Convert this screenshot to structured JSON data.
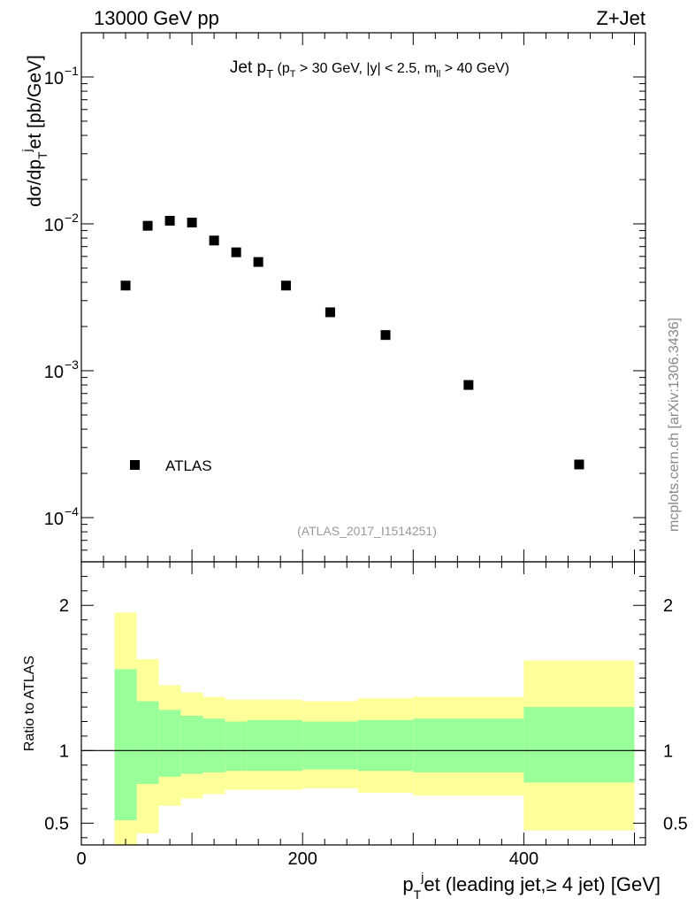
{
  "header": {
    "energy_label": "13000 GeV pp",
    "process_label": "Z+Jet"
  },
  "watermark": "mcplots.cern.ch [arXiv:1306.3436]",
  "analysis_id": "(ATLAS_2017_I1514251)",
  "colors": {
    "band_outer": "#ffff99",
    "band_inner": "#99ff99",
    "marker": "#000000"
  },
  "chart_data": [
    {
      "type": "scatter",
      "title": {
        "main": "Jet p",
        "main_sub": "T",
        "cut_pre": "(p",
        "cut_pre_sub": "T",
        "cut_mid": " > 30 GeV, |y| < 2.5, m",
        "cut_mid_sub": "ll",
        "cut_post": " > 40 GeV)"
      },
      "ylabel": {
        "a": "dσ/dp",
        "sub": "T",
        "sup": "j",
        "b": "et [pb/GeV]"
      },
      "yscale": "log",
      "ylim": [
        5e-05,
        0.2
      ],
      "xlim": [
        0,
        510
      ],
      "y_ticks": [
        {
          "value": 0.0001,
          "base": "10",
          "exp": "−4"
        },
        {
          "value": 0.001,
          "base": "10",
          "exp": "−3"
        },
        {
          "value": 0.01,
          "base": "10",
          "exp": "−2"
        },
        {
          "value": 0.1,
          "base": "10",
          "exp": "−1"
        }
      ],
      "legend": {
        "position": "bottom-left",
        "entries": [
          "ATLAS"
        ]
      },
      "series": [
        {
          "name": "ATLAS",
          "x": [
            40,
            60,
            80,
            100,
            120,
            140,
            160,
            185,
            225,
            275,
            350,
            450
          ],
          "y": [
            0.0038,
            0.0097,
            0.0105,
            0.0102,
            0.0077,
            0.0064,
            0.0055,
            0.0038,
            0.0025,
            0.00175,
            0.0008,
            0.00023
          ]
        }
      ]
    },
    {
      "type": "area",
      "ylabel": "Ratio to ATLAS",
      "xlabel": {
        "a": "p",
        "sub": "T",
        "sup": "j",
        "b": "et (leading jet,≥ 4 jet) [GeV]"
      },
      "ylim": [
        0.35,
        2.3
      ],
      "xlim": [
        0,
        510
      ],
      "y_ticks": [
        0.5,
        1,
        2
      ],
      "y_tick_labels": [
        "0.5",
        "1",
        "2"
      ],
      "x_ticks": [
        0,
        200,
        400
      ],
      "x_tick_labels": [
        "0",
        "200",
        "400"
      ],
      "bins": [
        30,
        50,
        70,
        90,
        110,
        130,
        150,
        200,
        250,
        300,
        400,
        500
      ],
      "band_outer_upper": [
        1.95,
        1.63,
        1.45,
        1.4,
        1.37,
        1.35,
        1.35,
        1.34,
        1.36,
        1.37,
        1.62
      ],
      "band_outer_lower": [
        0.33,
        0.43,
        0.62,
        0.67,
        0.7,
        0.73,
        0.73,
        0.74,
        0.71,
        0.69,
        0.45
      ],
      "band_inner_upper": [
        1.56,
        1.34,
        1.28,
        1.24,
        1.22,
        1.2,
        1.21,
        1.2,
        1.21,
        1.22,
        1.3
      ],
      "band_inner_lower": [
        0.52,
        0.77,
        0.82,
        0.84,
        0.85,
        0.86,
        0.86,
        0.87,
        0.86,
        0.85,
        0.78
      ],
      "reference_line": 1
    }
  ]
}
